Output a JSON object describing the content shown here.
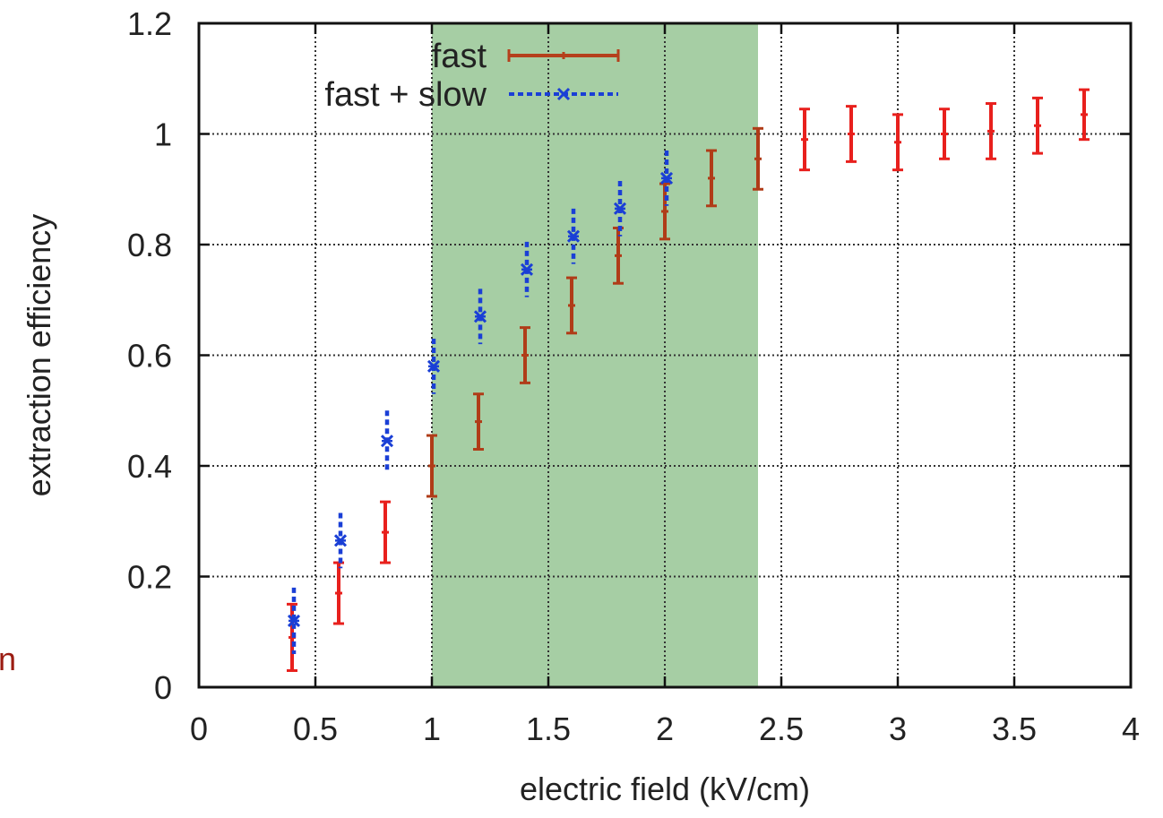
{
  "chart_data": {
    "type": "scatter",
    "title": "",
    "xlabel": "electric field (kV/cm)",
    "ylabel": "extraction efficiency",
    "xlim": [
      0,
      4
    ],
    "ylim": [
      0,
      1.2
    ],
    "xticks": [
      "0",
      "0.5",
      "1",
      "1.5",
      "2",
      "2.5",
      "3",
      "3.5",
      "4"
    ],
    "yticks": [
      "0",
      "0.2",
      "0.4",
      "0.6",
      "0.8",
      "1",
      "1.2"
    ],
    "grid": true,
    "legend_position": "top-center",
    "shaded_region": {
      "x_start": 1.0,
      "x_end": 2.4,
      "color": "#a6cea4"
    },
    "series": [
      {
        "name": "fast",
        "color": "#e8201d",
        "shaded_color": "#b03c18",
        "legend_color": "#b5401c",
        "style": "solid",
        "points": [
          {
            "x": 0.4,
            "y": 0.09,
            "err": 0.06
          },
          {
            "x": 0.6,
            "y": 0.17,
            "err": 0.055
          },
          {
            "x": 0.8,
            "y": 0.28,
            "err": 0.055
          },
          {
            "x": 1.0,
            "y": 0.4,
            "err": 0.055
          },
          {
            "x": 1.2,
            "y": 0.48,
            "err": 0.05
          },
          {
            "x": 1.4,
            "y": 0.6,
            "err": 0.05
          },
          {
            "x": 1.6,
            "y": 0.69,
            "err": 0.05
          },
          {
            "x": 1.8,
            "y": 0.78,
            "err": 0.05
          },
          {
            "x": 2.0,
            "y": 0.86,
            "err": 0.05
          },
          {
            "x": 2.2,
            "y": 0.92,
            "err": 0.05
          },
          {
            "x": 2.4,
            "y": 0.955,
            "err": 0.055
          },
          {
            "x": 2.6,
            "y": 0.99,
            "err": 0.055
          },
          {
            "x": 2.8,
            "y": 1.0,
            "err": 0.05
          },
          {
            "x": 3.0,
            "y": 0.985,
            "err": 0.05
          },
          {
            "x": 3.2,
            "y": 1.0,
            "err": 0.045
          },
          {
            "x": 3.4,
            "y": 1.005,
            "err": 0.05
          },
          {
            "x": 3.6,
            "y": 1.015,
            "err": 0.05
          },
          {
            "x": 3.8,
            "y": 1.035,
            "err": 0.045
          }
        ]
      },
      {
        "name": "fast + slow",
        "color": "#1a3fd6",
        "shaded_color": "#1a3fd6",
        "legend_color": "#1a3fd6",
        "style": "dashed",
        "points": [
          {
            "x": 0.4,
            "y": 0.12,
            "err": 0.06
          },
          {
            "x": 0.6,
            "y": 0.265,
            "err": 0.05
          },
          {
            "x": 0.8,
            "y": 0.445,
            "err": 0.055
          },
          {
            "x": 1.0,
            "y": 0.58,
            "err": 0.05
          },
          {
            "x": 1.2,
            "y": 0.67,
            "err": 0.05
          },
          {
            "x": 1.4,
            "y": 0.755,
            "err": 0.05
          },
          {
            "x": 1.6,
            "y": 0.815,
            "err": 0.05
          },
          {
            "x": 1.8,
            "y": 0.865,
            "err": 0.05
          },
          {
            "x": 2.0,
            "y": 0.92,
            "err": 0.05
          }
        ]
      }
    ]
  },
  "side_mark": "n"
}
